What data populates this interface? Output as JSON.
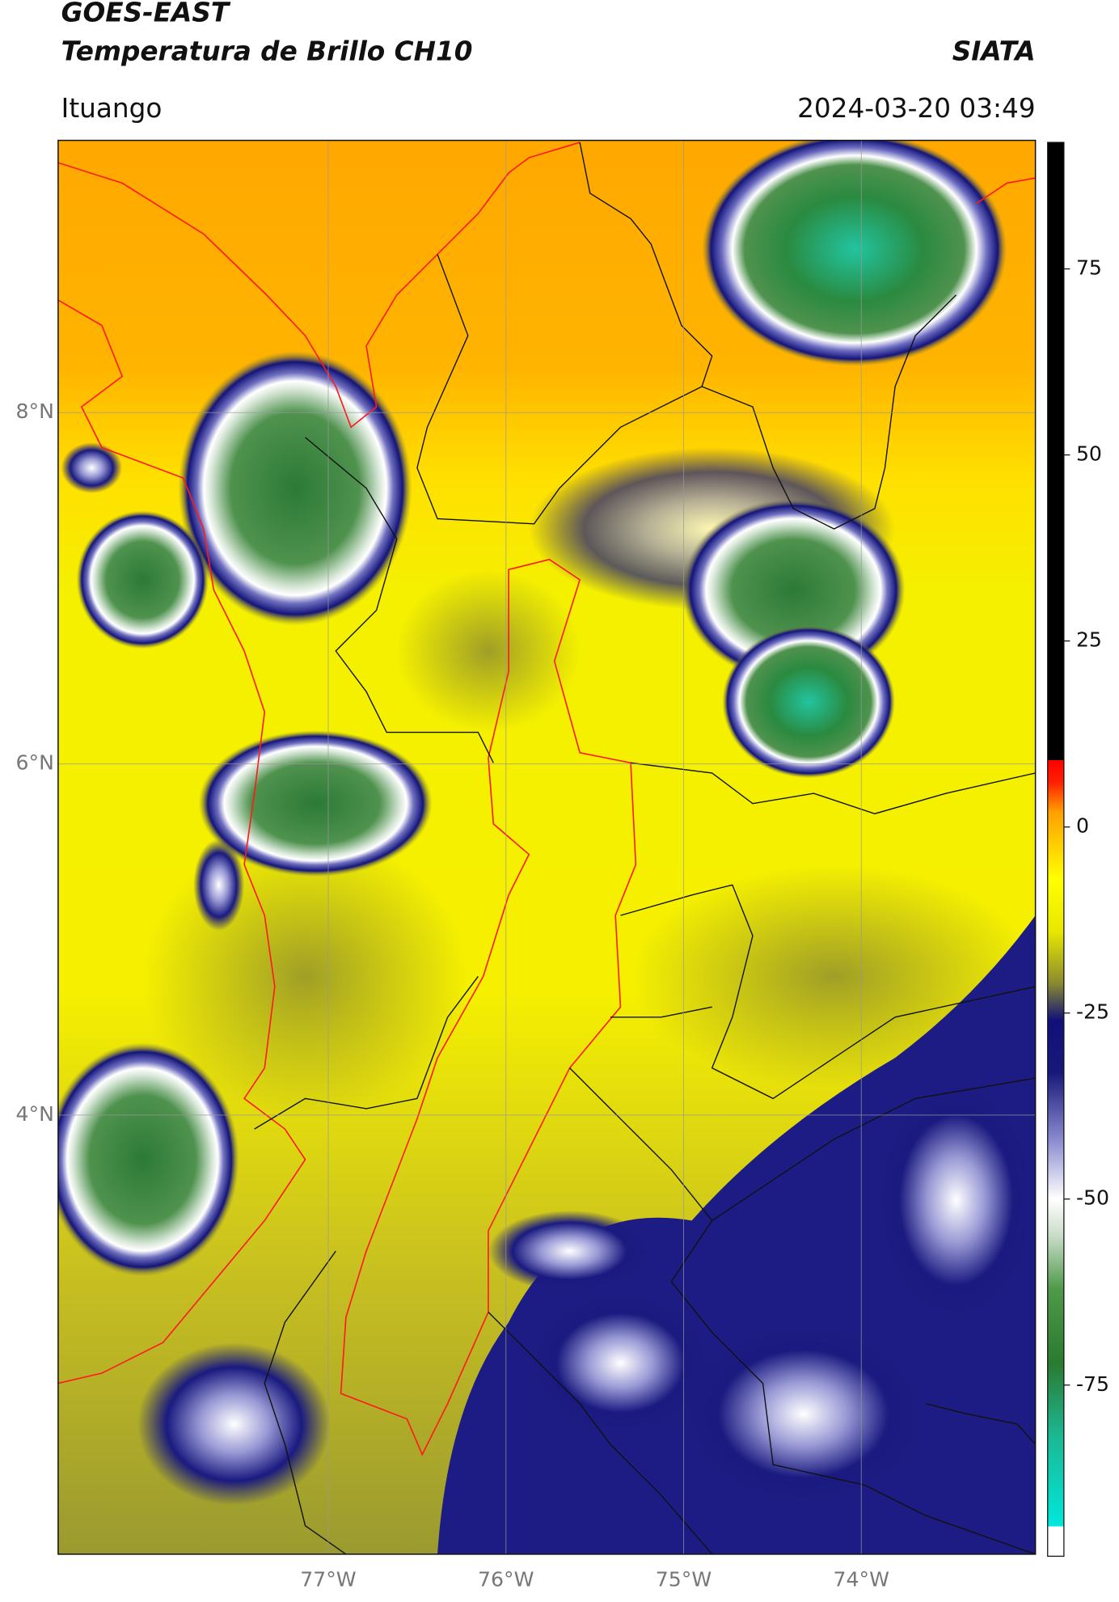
{
  "header": {
    "title": "GOES-EAST",
    "subtitle": "Temperatura de Brillo CH10",
    "source": "SIATA",
    "location": "Ituango",
    "datetime": "2024-03-20 03:49"
  },
  "map": {
    "latlim": [
      1.5,
      9.55
    ],
    "lonlim": [
      -78.52,
      -73.02
    ],
    "lat_ticks": [
      {
        "value": 8,
        "label": "8°N"
      },
      {
        "value": 6,
        "label": "6°N"
      },
      {
        "value": 4,
        "label": "4°N"
      }
    ],
    "lon_ticks": [
      {
        "value": -77,
        "label": "77°W"
      },
      {
        "value": -76,
        "label": "76°W"
      },
      {
        "value": -75,
        "label": "75°W"
      },
      {
        "value": -74,
        "label": "74°W"
      }
    ],
    "grid": true
  },
  "colorbar": {
    "lim": [
      -98,
      92
    ],
    "ticks": [
      75,
      50,
      25,
      0,
      -25,
      -50,
      -75
    ],
    "stops": [
      {
        "value": -98,
        "color": "#ffffff"
      },
      {
        "value": -94,
        "color": "#ffffff"
      },
      {
        "value": -94,
        "color": "#00e8dc"
      },
      {
        "value": -82,
        "color": "#1cb894"
      },
      {
        "value": -72,
        "color": "#2a7a30"
      },
      {
        "value": -62,
        "color": "#4f9a4a"
      },
      {
        "value": -55,
        "color": "#c8dcc8"
      },
      {
        "value": -50,
        "color": "#ffffff"
      },
      {
        "value": -42,
        "color": "#8a8ad0"
      },
      {
        "value": -33,
        "color": "#18187a"
      },
      {
        "value": -26,
        "color": "#10107a"
      },
      {
        "value": -21,
        "color": "#8a8a30"
      },
      {
        "value": -14,
        "color": "#e8e800"
      },
      {
        "value": -7,
        "color": "#ffff00"
      },
      {
        "value": 2,
        "color": "#ffa000"
      },
      {
        "value": 6,
        "color": "#ff2000"
      },
      {
        "value": 9,
        "color": "#ff0000"
      },
      {
        "value": 9,
        "color": "#000000"
      },
      {
        "value": 92,
        "color": "#000000"
      }
    ]
  }
}
